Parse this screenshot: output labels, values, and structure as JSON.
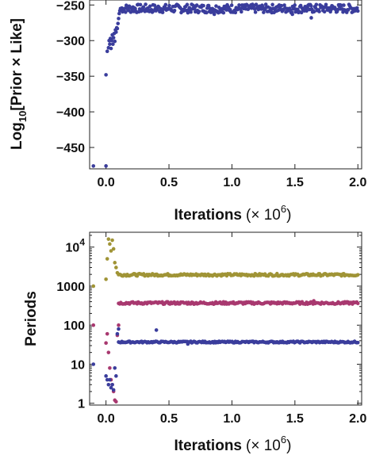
{
  "chart_data": [
    {
      "type": "scatter",
      "xlabel": "Iterations",
      "xlabel_unit": "(× 10",
      "xlabel_exp": "6",
      "xlabel_close": ")",
      "ylabel_prefix": "Log",
      "ylabel_sub": "10",
      "ylabel_rest": "[Prior × Like]",
      "xlim": [
        -0.13,
        2.03
      ],
      "ylim": [
        -480,
        -243
      ],
      "xticks": [
        {
          "v": 0.0,
          "label": "0.0"
        },
        {
          "v": 0.5,
          "label": "0.5"
        },
        {
          "v": 1.0,
          "label": "1.0"
        },
        {
          "v": 1.5,
          "label": "1.5"
        },
        {
          "v": 2.0,
          "label": "2.0"
        }
      ],
      "yticks": [
        {
          "v": -250,
          "label": "−250"
        },
        {
          "v": -300,
          "label": "−300"
        },
        {
          "v": -350,
          "label": "−350"
        },
        {
          "v": -400,
          "label": "−400"
        },
        {
          "v": -450,
          "label": "−450"
        }
      ],
      "grid": false,
      "series": [
        {
          "color": "#3a3d9c",
          "early_points": [
            [
              -0.1,
              -476
            ],
            [
              0.0,
              -476
            ],
            [
              0.0,
              -348
            ],
            [
              0.01,
              -315
            ],
            [
              0.02,
              -310
            ],
            [
              0.025,
              -300
            ],
            [
              0.03,
              -305
            ],
            [
              0.035,
              -297
            ],
            [
              0.04,
              -311
            ],
            [
              0.045,
              -300
            ],
            [
              0.05,
              -292
            ],
            [
              0.055,
              -305
            ],
            [
              0.06,
              -296
            ],
            [
              0.065,
              -290
            ],
            [
              0.07,
              -301
            ],
            [
              0.075,
              -285
            ],
            [
              0.08,
              -288
            ],
            [
              0.085,
              -282
            ],
            [
              0.09,
              -283
            ],
            [
              0.095,
              -276
            ],
            [
              0.1,
              -269
            ],
            [
              0.105,
              -262
            ],
            [
              0.11,
              -258
            ],
            [
              0.115,
              -255
            ]
          ],
          "plateau": {
            "x_start": 0.12,
            "x_end": 2.0,
            "center": -255,
            "spread": 6,
            "count": 320
          },
          "outliers": [
            [
              1.63,
              -268
            ],
            [
              1.48,
              -263
            ],
            [
              0.86,
              -263
            ]
          ]
        }
      ]
    },
    {
      "type": "scatter",
      "xlabel": "Iterations",
      "xlabel_unit": "(× 10",
      "xlabel_exp": "6",
      "xlabel_close": ")",
      "ylabel": "Periods",
      "y_scale": "log",
      "xlim": [
        -0.13,
        2.03
      ],
      "ylim": [
        0.9,
        24000
      ],
      "xticks": [
        {
          "v": 0.0,
          "label": "0.0"
        },
        {
          "v": 0.5,
          "label": "0.5"
        },
        {
          "v": 1.0,
          "label": "1.0"
        },
        {
          "v": 1.5,
          "label": "1.5"
        },
        {
          "v": 2.0,
          "label": "2.0"
        }
      ],
      "yticks": [
        {
          "v": 1,
          "label": "1"
        },
        {
          "v": 10,
          "label": "10"
        },
        {
          "v": 100,
          "label": "100"
        },
        {
          "v": 1000,
          "label": "1000"
        },
        {
          "v": 10000,
          "label_base": "10",
          "label_exp": "4"
        }
      ],
      "grid": false,
      "series": [
        {
          "color": "#a09436",
          "early_points": [
            [
              -0.1,
              1000
            ],
            [
              0.02,
              16000
            ],
            [
              0.03,
              12000
            ],
            [
              0.04,
              8000
            ],
            [
              0.05,
              15000
            ],
            [
              0.06,
              9000
            ],
            [
              0.07,
              4000
            ],
            [
              0.08,
              3000
            ],
            [
              0.09,
              2200
            ],
            [
              0.0,
              1500
            ],
            [
              0.01,
              5000
            ]
          ],
          "plateau": {
            "x_start": 0.1,
            "x_end": 2.0,
            "center": 1950,
            "spread": 0.03,
            "count": 220
          },
          "outliers": []
        },
        {
          "color": "#a8386f",
          "early_points": [
            [
              -0.1,
              100
            ],
            [
              0.0,
              35
            ],
            [
              0.01,
              60
            ],
            [
              0.02,
              20
            ],
            [
              0.03,
              8
            ],
            [
              0.04,
              4
            ],
            [
              0.05,
              3
            ],
            [
              0.06,
              2
            ],
            [
              0.07,
              1.2
            ],
            [
              0.08,
              1.1
            ],
            [
              0.09,
              55
            ],
            [
              0.1,
              100
            ]
          ],
          "plateau": {
            "x_start": 0.1,
            "x_end": 2.0,
            "center": 370,
            "spread": 0.03,
            "count": 220
          },
          "outliers": [
            [
              1.65,
              420
            ]
          ]
        },
        {
          "color": "#3a3d9c",
          "early_points": [
            [
              -0.1,
              10
            ],
            [
              0.0,
              5
            ],
            [
              0.01,
              4
            ],
            [
              0.02,
              3
            ],
            [
              0.03,
              4
            ],
            [
              0.04,
              2.5
            ],
            [
              0.05,
              3
            ],
            [
              0.06,
              2.2
            ],
            [
              0.07,
              8
            ],
            [
              0.08,
              5
            ],
            [
              0.1,
              80
            ],
            [
              0.09,
              60
            ]
          ],
          "plateau": {
            "x_start": 0.1,
            "x_end": 2.0,
            "center": 37,
            "spread": 0.02,
            "count": 220
          },
          "outliers": [
            [
              0.4,
              75
            ],
            [
              0.65,
              33
            ]
          ]
        }
      ]
    }
  ]
}
